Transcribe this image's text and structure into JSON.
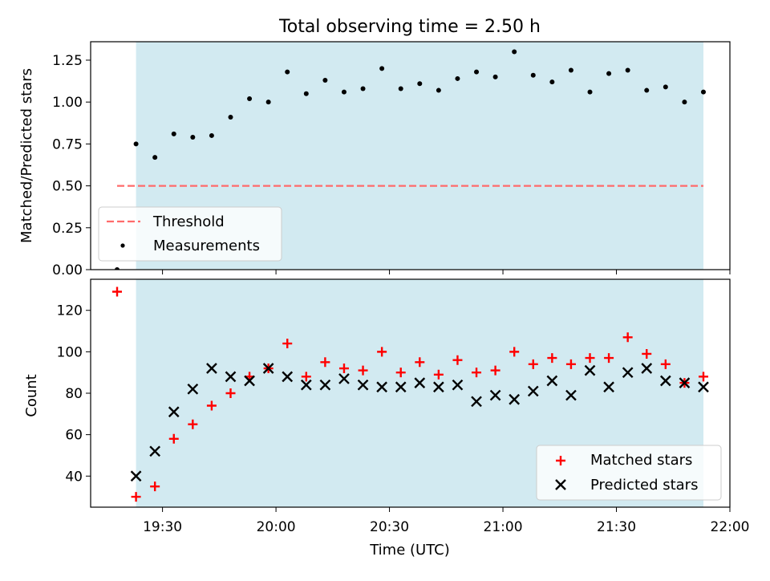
{
  "chart_data": [
    {
      "type": "scatter",
      "title": "Total observing time = 2.50 h",
      "xlabel": "",
      "ylabel": "Matched/Predicted stars",
      "ylim": [
        0,
        1.36
      ],
      "yticks": [
        "0.00",
        "0.25",
        "0.50",
        "0.75",
        "1.00",
        "1.25"
      ],
      "threshold": 0.5,
      "observing_window": [
        "19:23",
        "21:53"
      ],
      "x": [
        "19:18",
        "19:23",
        "19:28",
        "19:33",
        "19:38",
        "19:43",
        "19:48",
        "19:53",
        "19:58",
        "20:03",
        "20:08",
        "20:13",
        "20:18",
        "20:23",
        "20:28",
        "20:33",
        "20:38",
        "20:43",
        "20:48",
        "20:53",
        "20:58",
        "21:03",
        "21:08",
        "21:13",
        "21:18",
        "21:23",
        "21:28",
        "21:33",
        "21:38",
        "21:43",
        "21:48",
        "21:53"
      ],
      "series": [
        {
          "name": "Threshold",
          "style": "dashed-line",
          "color": "#ff6b6b",
          "x_range": [
            "19:18",
            "21:53"
          ],
          "y": 0.5
        },
        {
          "name": "Measurements",
          "style": "dot",
          "color": "#000000",
          "values": [
            0.0,
            0.75,
            0.67,
            0.81,
            0.79,
            0.8,
            0.91,
            1.02,
            1.0,
            1.18,
            1.05,
            1.13,
            1.06,
            1.08,
            1.2,
            1.08,
            1.11,
            1.07,
            1.14,
            1.18,
            1.15,
            1.3,
            1.16,
            1.12,
            1.19,
            1.06,
            1.17,
            1.19,
            1.07,
            1.09,
            1.0,
            1.06
          ]
        }
      ],
      "legend": {
        "position": "lower-left",
        "entries": [
          "Threshold",
          "Measurements"
        ]
      },
      "grid": false
    },
    {
      "type": "scatter",
      "title": "",
      "xlabel": "Time (UTC)",
      "ylabel": "Count",
      "ylim": [
        25,
        135
      ],
      "yticks": [
        "40",
        "60",
        "80",
        "100",
        "120"
      ],
      "xticks": [
        "19:30",
        "20:00",
        "20:30",
        "21:00",
        "21:30",
        "22:00"
      ],
      "xlim": [
        "19:11",
        "22:00"
      ],
      "observing_window": [
        "19:23",
        "21:53"
      ],
      "x": [
        "19:18",
        "19:23",
        "19:28",
        "19:33",
        "19:38",
        "19:43",
        "19:48",
        "19:53",
        "19:58",
        "20:03",
        "20:08",
        "20:13",
        "20:18",
        "20:23",
        "20:28",
        "20:33",
        "20:38",
        "20:43",
        "20:48",
        "20:53",
        "20:58",
        "21:03",
        "21:08",
        "21:13",
        "21:18",
        "21:23",
        "21:28",
        "21:33",
        "21:38",
        "21:43",
        "21:48",
        "21:53"
      ],
      "series": [
        {
          "name": "Matched stars",
          "marker": "plus",
          "color": "#ff0000",
          "values": [
            129,
            30,
            35,
            58,
            65,
            74,
            80,
            88,
            92,
            104,
            88,
            95,
            92,
            91,
            100,
            90,
            95,
            89,
            96,
            90,
            91,
            100,
            94,
            97,
            94,
            97,
            97,
            107,
            99,
            94,
            85,
            88
          ]
        },
        {
          "name": "Predicted stars",
          "marker": "x",
          "color": "#000000",
          "values": [
            null,
            40,
            52,
            71,
            82,
            92,
            88,
            86,
            92,
            88,
            84,
            84,
            87,
            84,
            83,
            83,
            85,
            83,
            84,
            76,
            79,
            77,
            81,
            86,
            79,
            91,
            83,
            90,
            92,
            86,
            85,
            83
          ]
        }
      ],
      "legend": {
        "position": "lower-right",
        "entries": [
          "Matched stars",
          "Predicted stars"
        ]
      },
      "grid": false
    }
  ],
  "colors": {
    "window_fill": "#add8e6",
    "threshold": "#ff6b6b",
    "matched": "#ff0000",
    "predicted": "#000000"
  }
}
